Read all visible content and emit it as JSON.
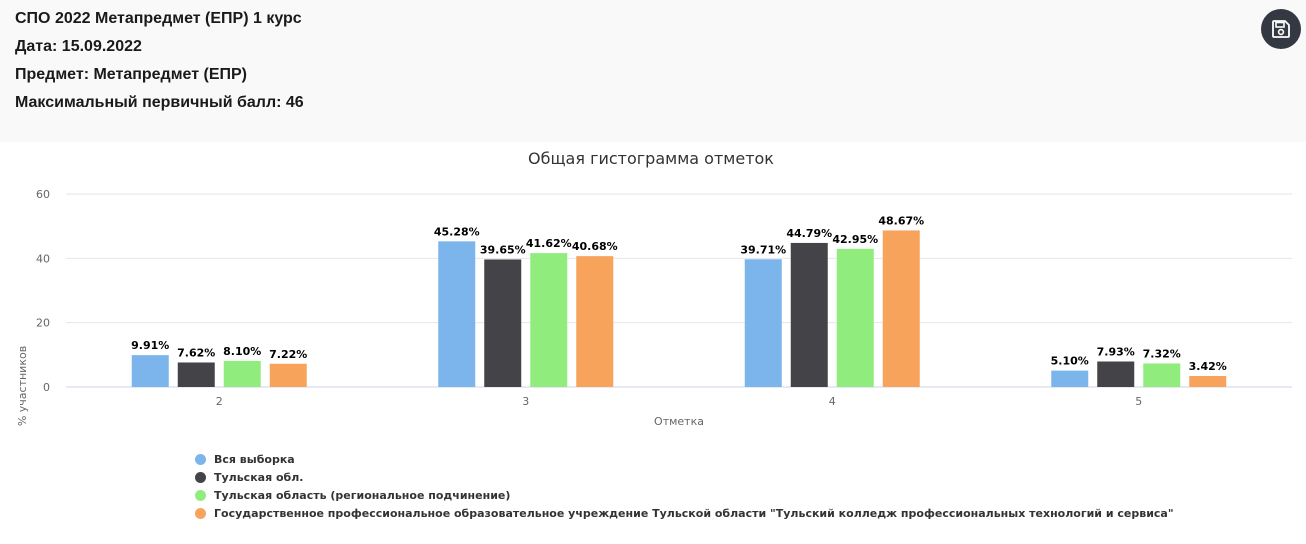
{
  "report": {
    "title": "СПО 2022 Метапредмет (ЕПР) 1 курс",
    "date": "Дата: 15.09.2022",
    "subject": "Предмет: Метапредмет (ЕПР)",
    "max_score": "Максимальный первичный балл: 46"
  },
  "toolbar": {
    "save_icon": "floppy-disk-icon"
  },
  "chart_data": {
    "type": "bar",
    "title": "Общая гистограмма отметок",
    "xlabel": "Отметка",
    "ylabel": "% участников",
    "ylim": [
      0,
      60
    ],
    "yticks": [
      "0",
      "20",
      "40",
      "60"
    ],
    "grid": true,
    "legend_position": "bottom-left",
    "categories": [
      "2",
      "3",
      "4",
      "5"
    ],
    "series": [
      {
        "name": "Вся выборка",
        "color": "#7cb5ec",
        "values": [
          9.91,
          45.28,
          39.71,
          5.1
        ],
        "labels": [
          "9.91%",
          "45.28%",
          "39.71%",
          "5.10%"
        ]
      },
      {
        "name": "Тульская обл.",
        "color": "#434348",
        "values": [
          7.62,
          39.65,
          44.79,
          7.93
        ],
        "labels": [
          "7.62%",
          "39.65%",
          "44.79%",
          "7.93%"
        ]
      },
      {
        "name": "Тульская область (региональное подчинение)",
        "color": "#90ed7d",
        "values": [
          8.1,
          41.62,
          42.95,
          7.32
        ],
        "labels": [
          "8.10%",
          "41.62%",
          "42.95%",
          "7.32%"
        ]
      },
      {
        "name": "Государственное профессиональное образовательное учреждение Тульской области \"Тульский колледж профессиональных технологий и сервиса\"",
        "color": "#f7a35c",
        "values": [
          7.22,
          40.68,
          48.67,
          3.42
        ],
        "labels": [
          "7.22%",
          "40.68%",
          "48.67%",
          "3.42%"
        ]
      }
    ]
  }
}
